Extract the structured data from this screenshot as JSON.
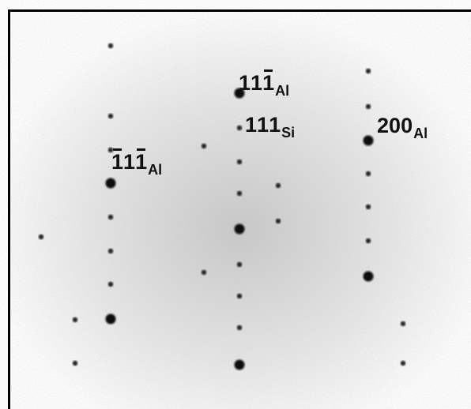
{
  "labels": [
    {
      "digits": [
        "1",
        "1",
        "1"
      ],
      "bars": [
        false,
        false,
        true
      ],
      "phase": "Al"
    },
    {
      "digits": [
        "1",
        "1",
        "1"
      ],
      "bars": [
        false,
        false,
        false
      ],
      "phase": "Si"
    },
    {
      "digits": [
        "2",
        "0",
        "0"
      ],
      "bars": [
        false,
        false,
        false
      ],
      "phase": "Al"
    },
    {
      "digits": [
        "1",
        "1",
        "1"
      ],
      "bars": [
        true,
        false,
        true
      ],
      "phase": "Al"
    }
  ]
}
